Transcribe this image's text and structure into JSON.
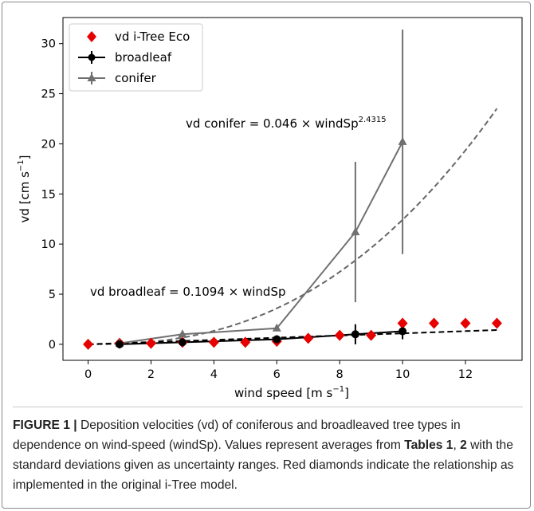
{
  "chart_data": {
    "type": "line",
    "xlabel_main": "wind speed [m s",
    "xlabel_sup": "−1",
    "xlabel_end": "]",
    "ylabel_main": "vd [cm s",
    "ylabel_sup": "−1",
    "ylabel_end": "]",
    "xlim": [
      -0.8,
      13.8
    ],
    "ylim": [
      -1.6,
      32.6
    ],
    "xticks": [
      0,
      2,
      4,
      6,
      8,
      10,
      12
    ],
    "yticks": [
      0,
      5,
      10,
      15,
      20,
      25,
      30
    ],
    "grid": false,
    "legend_position": "top-left",
    "series": [
      {
        "name": "vd i-Tree Eco",
        "marker": "diamond",
        "color": "#e60000",
        "x": [
          0,
          1,
          2,
          3,
          4,
          5,
          6,
          7,
          8,
          9,
          10,
          11,
          12,
          13
        ],
        "y": [
          0.0,
          0.1,
          0.1,
          0.2,
          0.2,
          0.2,
          0.3,
          0.6,
          0.9,
          0.9,
          2.1,
          2.1,
          2.1,
          2.1
        ]
      },
      {
        "name": "broadleaf",
        "marker": "circle",
        "color": "#000000",
        "x": [
          1,
          3,
          6,
          8.5,
          10
        ],
        "y": [
          0.0,
          0.2,
          0.5,
          1.0,
          1.3
        ],
        "err": [
          0.2,
          0.3,
          0.4,
          1.0,
          0.8
        ]
      },
      {
        "name": "conifer",
        "marker": "triangle",
        "color": "#707070",
        "x": [
          1,
          3,
          6,
          8.5,
          10
        ],
        "y": [
          0.1,
          1.0,
          1.6,
          11.2,
          20.2
        ],
        "err": [
          0.0,
          0.0,
          0.0,
          7.0,
          11.2
        ]
      }
    ],
    "fits": [
      {
        "name": "conifer fit",
        "color": "#666666",
        "coef": 0.046,
        "exp": 2.4315,
        "x_range": [
          0,
          13
        ]
      },
      {
        "name": "broadleaf fit",
        "color": "#000000",
        "coef": 0.1094,
        "exp": 1.0,
        "x_range": [
          0,
          13
        ]
      }
    ],
    "annotations": [
      {
        "id": "conifer",
        "text": "vd conifer = 0.046 × windSp",
        "sup": "2.4315"
      },
      {
        "id": "broadleaf",
        "text": "vd broadleaf = 0.1094 × windSp",
        "sup": ""
      }
    ]
  },
  "caption": {
    "label": "FIGURE 1 |",
    "text1": " Deposition velocities (vd) of coniferous and broadleaved tree types in dependence on wind-speed (windSp). Values represent averages from ",
    "tables": "Tables 1",
    "comma": ", ",
    "tables2": "2",
    "text2": " with the standard deviations given as uncertainty ranges. Red diamonds indicate the relationship as implemented in the original i-Tree model."
  }
}
